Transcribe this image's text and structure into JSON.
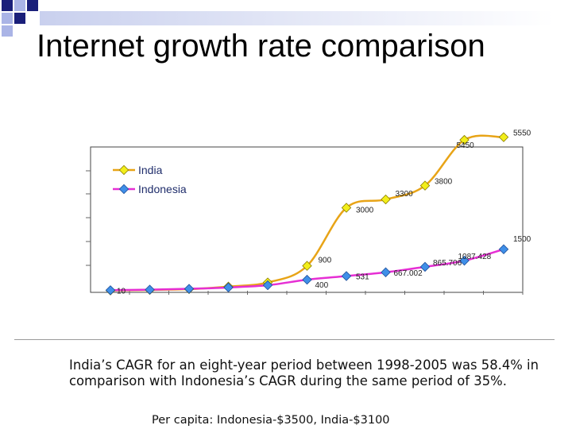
{
  "slide": {
    "title": "Internet growth rate comparison",
    "body": "India’s CAGR for an eight-year period between 1998-2005 was 58.4% in comparison with Indonesia’s CAGR during the same period of 35%.",
    "footnote": "Per capita: Indonesia-$3500, India-$3100"
  },
  "colors": {
    "india": "#e8a417",
    "indonesia": "#e62fd4",
    "india_marker": "#f2ee1a",
    "indonesia_marker": "#3f8fe8",
    "deco_square_dark": "#1a1f7a",
    "deco_square_light": "#aab4e6"
  },
  "chart_data": {
    "type": "line",
    "title": "",
    "xlabel": "",
    "ylabel": "",
    "ylim": [
      0,
      6000
    ],
    "grid": false,
    "legend": "top-left",
    "point_count": 11,
    "series": [
      {
        "name": "India",
        "values": [
          10,
          30,
          60,
          150,
          300,
          900,
          3000,
          3300,
          3800,
          5450,
          5550
        ],
        "labels": [
          "10",
          "",
          "",
          "",
          "",
          "900",
          "3000",
          "3300",
          "3800",
          "5450",
          "5550"
        ]
      },
      {
        "name": "Indonesia",
        "values": [
          20,
          40,
          70,
          120,
          200,
          400,
          531,
          667.002,
          865.706,
          1087.428,
          1500
        ],
        "labels": [
          "",
          "",
          "",
          "",
          "",
          "400",
          "531",
          "667.002",
          "865.706",
          "1087.428",
          "1500"
        ]
      }
    ]
  }
}
